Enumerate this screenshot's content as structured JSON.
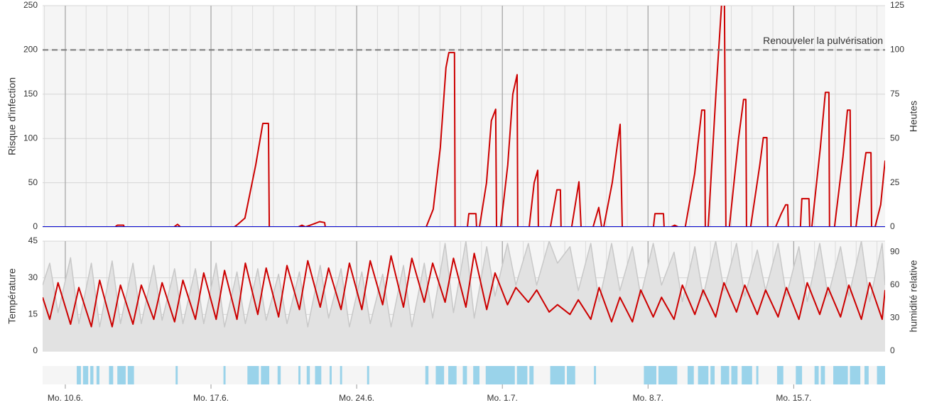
{
  "chart_data": [
    {
      "type": "line",
      "ylabel": "Risque d'infection",
      "y2label": "Heutes",
      "xlim": [
        8.91,
        49.39
      ],
      "xticks": [
        10,
        17,
        24,
        31,
        38,
        45
      ],
      "xminorticks": [
        9,
        10,
        11,
        12,
        13,
        14,
        15,
        16,
        17,
        18,
        19,
        20,
        21,
        22,
        23,
        24,
        25,
        26,
        27,
        28,
        29,
        30,
        31,
        32,
        33,
        34,
        35,
        36,
        37,
        38,
        39,
        40,
        41,
        42,
        43,
        44,
        45,
        46,
        47,
        48,
        49
      ],
      "ylim": [
        0,
        250
      ],
      "yticks": [
        0,
        50,
        100,
        150,
        200,
        250
      ],
      "y2lim": [
        0,
        125
      ],
      "y2ticks": [
        0,
        25,
        50,
        75,
        100,
        125
      ],
      "grid": true,
      "threshold": {
        "value": 200,
        "label": "Renouveler la pulvérisation"
      },
      "series": [
        {
          "color": "#cc0000",
          "x": [
            8.91,
            12.39,
            12.5,
            12.8,
            12.83,
            15.22,
            15.39,
            15.53,
            18.12,
            18.29,
            18.63,
            19.15,
            19.49,
            19.76,
            19.8,
            21.19,
            21.37,
            21.54,
            21.88,
            22.22,
            22.46,
            22.49,
            27.34,
            27.68,
            28.02,
            28.29,
            28.43,
            28.7,
            28.73,
            29.32,
            29.39,
            29.73,
            29.76,
            29.9,
            30.24,
            30.47,
            30.68,
            30.72,
            30.92,
            31.26,
            31.5,
            31.71,
            31.74,
            32.29,
            32.53,
            32.7,
            32.73,
            33.31,
            33.62,
            33.79,
            33.82,
            34.33,
            34.68,
            34.78,
            35.36,
            35.63,
            35.77,
            35.87,
            36.28,
            36.66,
            36.76,
            38.26,
            38.33,
            38.74,
            38.77,
            39.11,
            39.28,
            39.45,
            39.79,
            40.24,
            40.58,
            40.72,
            40.75,
            40.89,
            41.26,
            41.53,
            41.67,
            41.74,
            41.91,
            42.35,
            42.59,
            42.7,
            42.73,
            42.93,
            43.37,
            43.54,
            43.71,
            43.75,
            44.13,
            44.4,
            44.61,
            44.71,
            44.74,
            45.32,
            45.39,
            45.73,
            45.77,
            45.87,
            46.28,
            46.52,
            46.69,
            46.72,
            46.96,
            47.37,
            47.58,
            47.71,
            47.75,
            47.99,
            48.33,
            48.47,
            48.71,
            48.74,
            48.91,
            49.18,
            49.39
          ],
          "values": [
            0,
            0,
            2,
            2,
            0,
            0,
            3,
            0,
            0,
            3,
            10,
            70,
            117,
            117,
            0,
            0,
            2,
            0,
            3,
            6,
            5,
            0,
            0,
            20,
            90,
            180,
            197,
            197,
            0,
            0,
            15,
            15,
            0,
            0,
            50,
            120,
            133,
            0,
            0,
            70,
            150,
            172,
            0,
            0,
            50,
            64,
            0,
            0,
            42,
            42,
            0,
            0,
            51,
            0,
            0,
            22,
            0,
            0,
            50,
            116,
            0,
            0,
            15,
            15,
            0,
            0,
            2,
            0,
            0,
            60,
            132,
            132,
            0,
            0,
            150,
            250,
            255,
            0,
            0,
            100,
            144,
            144,
            0,
            0,
            70,
            101,
            101,
            0,
            0,
            15,
            25,
            25,
            0,
            0,
            32,
            32,
            0,
            0,
            90,
            152,
            152,
            0,
            0,
            80,
            132,
            132,
            0,
            0,
            60,
            84,
            84,
            0,
            0,
            25,
            75
          ]
        },
        {
          "color": "#0000cc",
          "axis": "y2",
          "x": [
            8.91,
            49.39
          ],
          "values": [
            0,
            0
          ]
        }
      ]
    },
    {
      "type": "line",
      "ylabel": "Température",
      "y2label": "humidité relative",
      "xlim": [
        8.91,
        49.39
      ],
      "xticks": [
        10,
        17,
        24,
        31,
        38,
        45
      ],
      "xminorticks": [
        9,
        10,
        11,
        12,
        13,
        14,
        15,
        16,
        17,
        18,
        19,
        20,
        21,
        22,
        23,
        24,
        25,
        26,
        27,
        28,
        29,
        30,
        31,
        32,
        33,
        34,
        35,
        36,
        37,
        38,
        39,
        40,
        41,
        42,
        43,
        44,
        45,
        46,
        47,
        48,
        49
      ],
      "ylim": [
        0,
        45
      ],
      "yticks": [
        0,
        15,
        30,
        45
      ],
      "y2lim": [
        0,
        100
      ],
      "y2ticks": [
        0,
        30,
        60,
        90
      ],
      "grid": true,
      "series": [
        {
          "color": "#c8c8c8",
          "fill": "#e2e2e2",
          "area": true,
          "axis": "y2",
          "x": [
            8.91,
            9.25,
            9.65,
            10.25,
            10.65,
            11.25,
            11.65,
            12.25,
            12.65,
            13.25,
            13.65,
            14.25,
            14.65,
            15.25,
            15.65,
            16.25,
            16.65,
            17.25,
            17.65,
            18.25,
            18.65,
            19.25,
            19.65,
            20.25,
            20.65,
            21.25,
            21.65,
            22.25,
            22.65,
            23.25,
            23.65,
            24.25,
            24.65,
            25.25,
            25.65,
            26.25,
            26.65,
            27.25,
            27.65,
            28.25,
            28.65,
            29.25,
            29.65,
            30.25,
            30.65,
            31.25,
            31.65,
            32.25,
            32.65,
            33.25,
            33.65,
            34.25,
            34.65,
            35.25,
            35.65,
            36.25,
            36.65,
            37.25,
            37.65,
            38.25,
            38.65,
            39.25,
            39.65,
            40.25,
            40.65,
            41.25,
            41.65,
            42.25,
            42.65,
            43.25,
            43.65,
            44.25,
            44.65,
            45.25,
            45.65,
            46.25,
            46.65,
            47.25,
            47.65,
            48.25,
            48.65,
            49.25,
            49.39
          ],
          "values": [
            60,
            80,
            35,
            85,
            25,
            80,
            22,
            82,
            25,
            80,
            25,
            78,
            28,
            75,
            25,
            75,
            25,
            80,
            22,
            72,
            25,
            75,
            28,
            70,
            25,
            72,
            22,
            78,
            30,
            75,
            22,
            72,
            25,
            70,
            22,
            78,
            22,
            80,
            30,
            98,
            35,
            100,
            30,
            95,
            50,
            98,
            60,
            98,
            60,
            100,
            80,
            95,
            55,
            98,
            45,
            98,
            55,
            95,
            50,
            98,
            60,
            90,
            45,
            95,
            50,
            100,
            55,
            98,
            50,
            92,
            55,
            98,
            50,
            95,
            45,
            98,
            50,
            95,
            50,
            100,
            45,
            98,
            60
          ]
        },
        {
          "color": "#cc0000",
          "x": [
            8.91,
            9.25,
            9.65,
            10.25,
            10.65,
            11.25,
            11.65,
            12.25,
            12.65,
            13.25,
            13.65,
            14.25,
            14.65,
            15.25,
            15.65,
            16.25,
            16.65,
            17.25,
            17.65,
            18.25,
            18.65,
            19.25,
            19.65,
            20.25,
            20.65,
            21.25,
            21.65,
            22.25,
            22.65,
            23.25,
            23.65,
            24.25,
            24.65,
            25.25,
            25.65,
            26.25,
            26.65,
            27.25,
            27.65,
            28.25,
            28.65,
            29.25,
            29.65,
            30.25,
            30.65,
            31.25,
            31.65,
            32.25,
            32.65,
            33.25,
            33.65,
            34.25,
            34.65,
            35.25,
            35.65,
            36.25,
            36.65,
            37.25,
            37.65,
            38.25,
            38.65,
            39.25,
            39.65,
            40.25,
            40.65,
            41.25,
            41.65,
            42.25,
            42.65,
            43.25,
            43.65,
            44.25,
            44.65,
            45.25,
            45.65,
            46.25,
            46.65,
            47.25,
            47.65,
            48.25,
            48.65,
            49.25,
            49.39
          ],
          "values": [
            22,
            13,
            28,
            11,
            26,
            10,
            29,
            10,
            27,
            11,
            27,
            13,
            28,
            12,
            29,
            13,
            32,
            13,
            33,
            13,
            36,
            15,
            34,
            14,
            35,
            17,
            37,
            18,
            34,
            17,
            36,
            17,
            37,
            19,
            39,
            18,
            38,
            20,
            36,
            20,
            38,
            18,
            40,
            17,
            32,
            19,
            26,
            20,
            25,
            16,
            19,
            15,
            21,
            13,
            26,
            12,
            22,
            12,
            25,
            14,
            22,
            13,
            27,
            15,
            25,
            14,
            28,
            16,
            27,
            15,
            25,
            14,
            26,
            13,
            28,
            15,
            26,
            14,
            27,
            13,
            28,
            13,
            25
          ]
        }
      ]
    },
    {
      "type": "timeline",
      "color": "#9ad3ea",
      "xlim": [
        8.91,
        49.39
      ],
      "xticks": [
        {
          "value": 10,
          "label": "Mo. 10.6."
        },
        {
          "value": 17,
          "label": "Mo. 17.6."
        },
        {
          "value": 24,
          "label": "Mo. 24.6."
        },
        {
          "value": 31,
          "label": "Mo. 1.7."
        },
        {
          "value": 38,
          "label": "Mo. 8.7."
        },
        {
          "value": 45,
          "label": "Mo. 15.7."
        }
      ],
      "intervals": [
        [
          10.55,
          10.75
        ],
        [
          10.85,
          11.1
        ],
        [
          11.2,
          11.35
        ],
        [
          11.5,
          11.64
        ],
        [
          12.1,
          12.3
        ],
        [
          12.5,
          12.9
        ],
        [
          13.0,
          13.3
        ],
        [
          15.3,
          15.4
        ],
        [
          17.6,
          17.7
        ],
        [
          18.75,
          19.3
        ],
        [
          19.4,
          19.8
        ],
        [
          20.2,
          20.35
        ],
        [
          21.2,
          21.3
        ],
        [
          21.6,
          21.75
        ],
        [
          22.0,
          22.3
        ],
        [
          22.7,
          22.8
        ],
        [
          23.2,
          23.3
        ],
        [
          24.5,
          24.6
        ],
        [
          27.3,
          27.45
        ],
        [
          27.8,
          28.2
        ],
        [
          28.4,
          28.8
        ],
        [
          29.1,
          29.3
        ],
        [
          29.6,
          29.9
        ],
        [
          30.2,
          31.6
        ],
        [
          31.7,
          32.2
        ],
        [
          32.3,
          32.5
        ],
        [
          33.3,
          34.0
        ],
        [
          34.1,
          34.5
        ],
        [
          35.4,
          35.5
        ],
        [
          37.8,
          38.4
        ],
        [
          38.5,
          39.4
        ],
        [
          39.9,
          40.2
        ],
        [
          40.4,
          40.9
        ],
        [
          41.0,
          41.2
        ],
        [
          41.5,
          41.9
        ],
        [
          42.0,
          42.3
        ],
        [
          42.5,
          43.0
        ],
        [
          43.2,
          43.3
        ],
        [
          44.2,
          44.5
        ],
        [
          45.1,
          45.4
        ],
        [
          46.0,
          46.2
        ],
        [
          46.3,
          46.5
        ],
        [
          46.9,
          47.6
        ],
        [
          47.7,
          48.2
        ],
        [
          48.4,
          48.6
        ],
        [
          49.0,
          49.39
        ]
      ]
    }
  ]
}
